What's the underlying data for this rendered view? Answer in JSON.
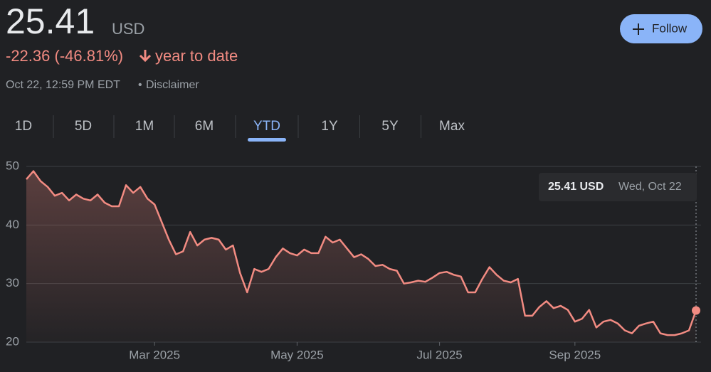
{
  "header": {
    "price": "25.41",
    "currency": "USD",
    "change": "-22.36 (-46.81%)",
    "change_period": "year to date",
    "timestamp": "Oct 22, 12:59 PM EDT",
    "separator": "•",
    "disclaimer": "Disclaimer",
    "follow": "Follow"
  },
  "tabs": [
    {
      "label": "1D"
    },
    {
      "label": "5D"
    },
    {
      "label": "1M"
    },
    {
      "label": "6M"
    },
    {
      "label": "YTD",
      "selected": true
    },
    {
      "label": "1Y"
    },
    {
      "label": "5Y"
    },
    {
      "label": "Max"
    }
  ],
  "chart_data": {
    "type": "line",
    "color": "#f28b82",
    "grid": true,
    "categories": [
      null,
      null,
      null,
      null,
      null,
      null,
      null,
      null,
      null,
      null,
      null,
      null,
      null,
      null,
      null,
      null,
      null,
      null,
      "Mar 2025",
      null,
      null,
      null,
      null,
      null,
      null,
      null,
      null,
      null,
      null,
      null,
      null,
      null,
      null,
      null,
      null,
      null,
      null,
      null,
      "May 2025",
      null,
      null,
      null,
      null,
      null,
      null,
      null,
      null,
      null,
      null,
      null,
      null,
      null,
      null,
      null,
      null,
      null,
      null,
      null,
      "Jul 2025",
      null,
      null,
      null,
      null,
      null,
      null,
      null,
      null,
      null,
      null,
      null,
      null,
      null,
      null,
      null,
      null,
      null,
      null,
      "Sep 2025",
      null,
      null,
      null,
      null,
      null,
      null,
      null,
      null,
      null,
      null,
      null,
      null,
      null,
      null,
      null,
      null,
      null
    ],
    "values": [
      47.8,
      49.2,
      47.5,
      46.5,
      45,
      45.5,
      44.2,
      45.2,
      44.5,
      44.2,
      45.2,
      43.8,
      43.2,
      43.2,
      46.8,
      45.5,
      46.5,
      44.5,
      43.5,
      40.5,
      37.5,
      35,
      35.5,
      38.8,
      36.5,
      37.5,
      37.8,
      37.5,
      35.8,
      36.5,
      31.8,
      28.5,
      32.5,
      32,
      32.5,
      34.5,
      36,
      35.2,
      34.8,
      35.8,
      35.2,
      35.2,
      38,
      37,
      37.5,
      36,
      34.5,
      35,
      34.2,
      33,
      33.2,
      32.5,
      32.2,
      30,
      30.2,
      30.5,
      30.3,
      31,
      31.8,
      32,
      31.5,
      31.2,
      28.5,
      28.5,
      30.8,
      32.8,
      31.5,
      30.5,
      30.2,
      30.8,
      24.5,
      24.5,
      26,
      27,
      25.8,
      26.2,
      25.5,
      23.5,
      24,
      25.5,
      22.5,
      23.5,
      23.8,
      23.2,
      22,
      21.5,
      22.8,
      23.2,
      23.5,
      21.5,
      21.2,
      21.2,
      21.5,
      22,
      25.41
    ],
    "ylim": [
      20,
      50
    ],
    "yticks": [
      20,
      30,
      40,
      50
    ],
    "tooltip": {
      "value": "25.41 USD",
      "date": "Wed, Oct 22"
    }
  }
}
